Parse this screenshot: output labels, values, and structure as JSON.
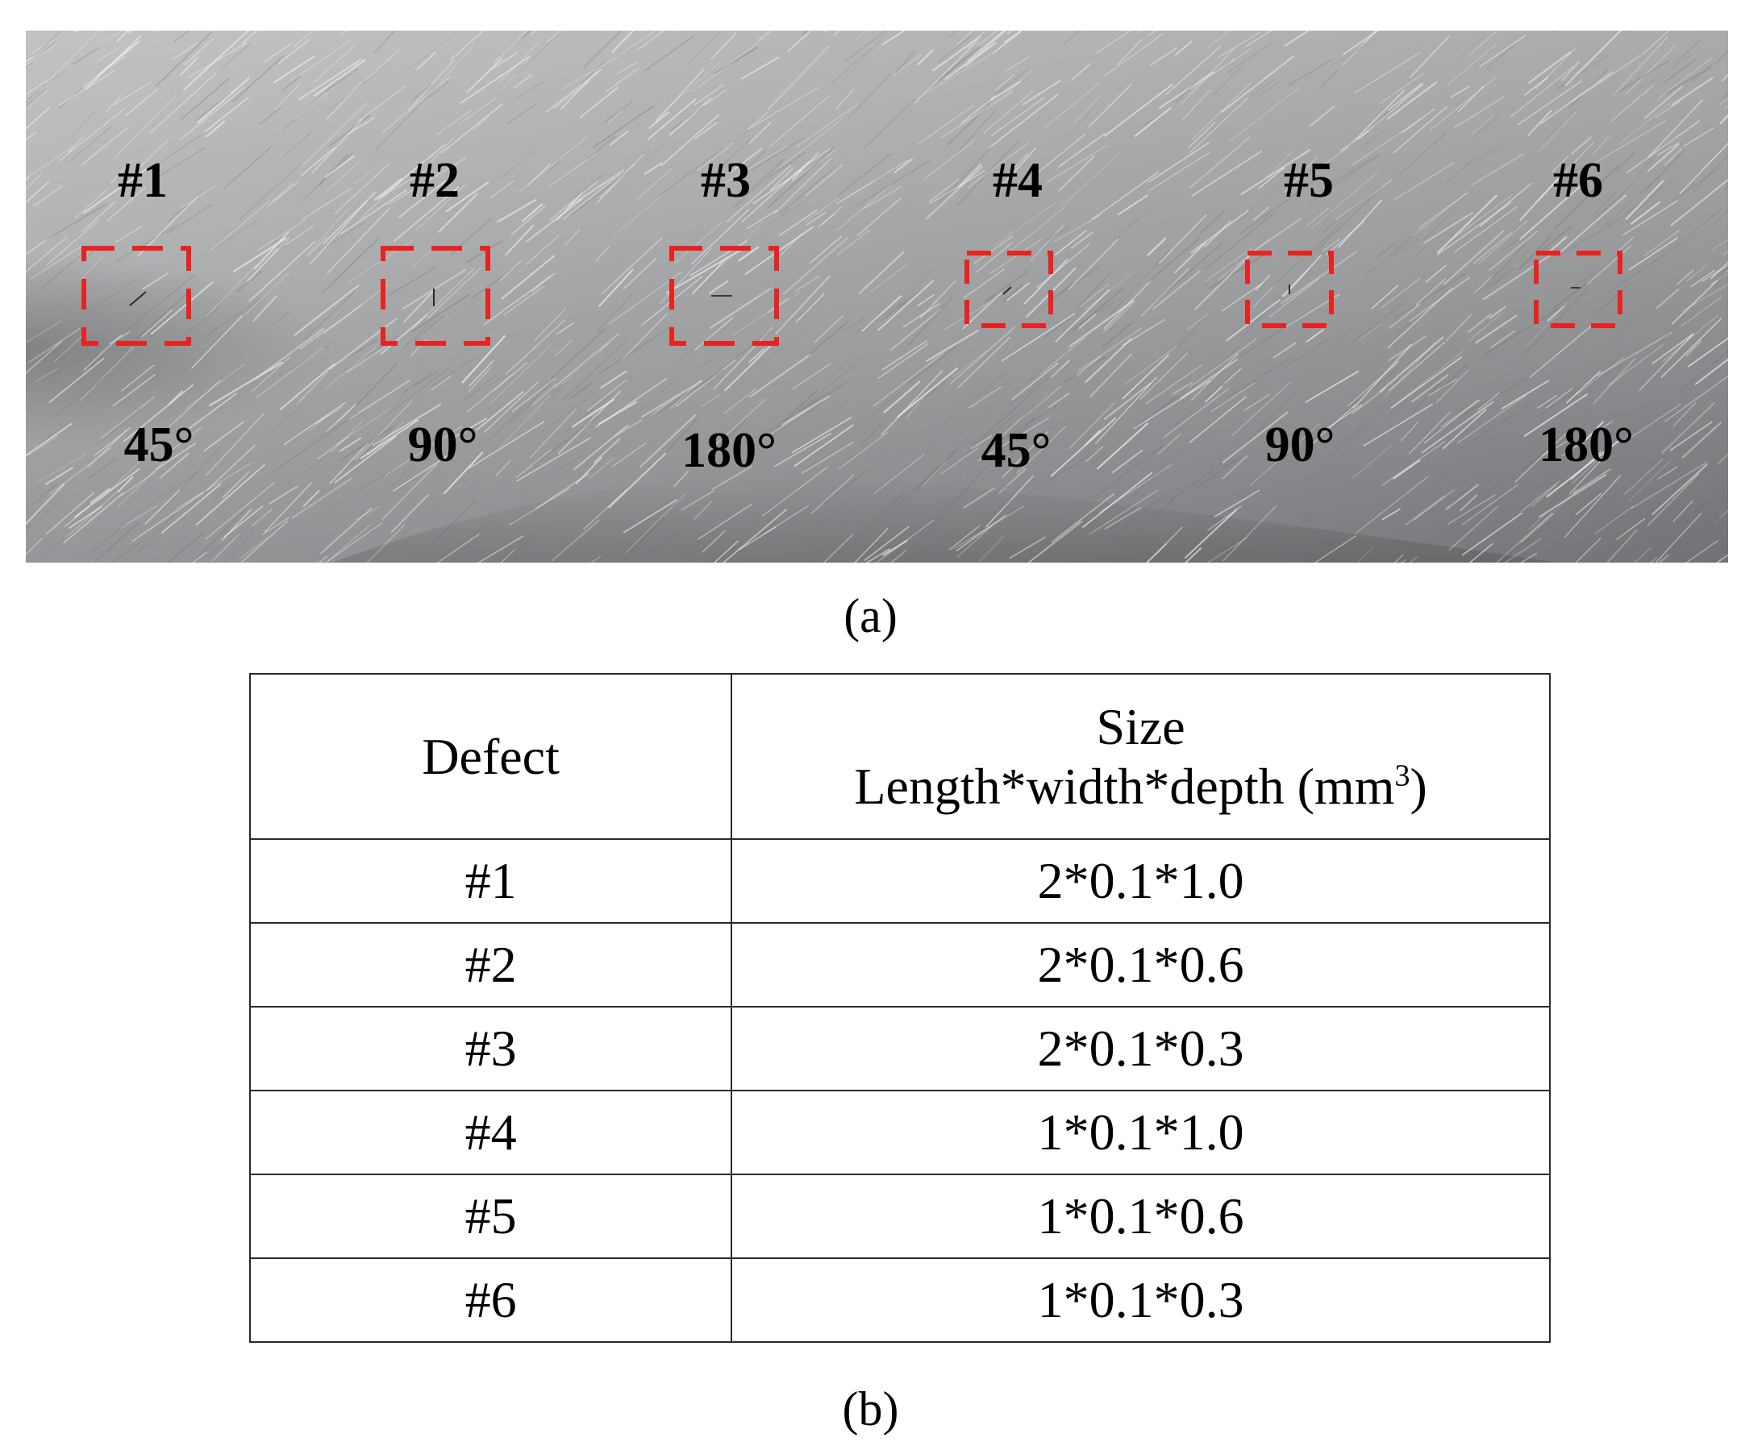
{
  "panel_a": {
    "caption": "(a)",
    "defects": [
      {
        "id": "#1",
        "angle": "45°"
      },
      {
        "id": "#2",
        "angle": "90°"
      },
      {
        "id": "#3",
        "angle": "180°"
      },
      {
        "id": "#4",
        "angle": "45°"
      },
      {
        "id": "#5",
        "angle": "90°"
      },
      {
        "id": "#6",
        "angle": "180°"
      }
    ],
    "box_color": "#e8231f"
  },
  "panel_b": {
    "caption": "(b)",
    "table": {
      "header_defect": "Defect",
      "header_size_line1": "Size",
      "header_size_line2": "Length*width*depth (mm",
      "header_size_unit_sup": "3",
      "header_size_close": ")",
      "rows": [
        {
          "defect": "#1",
          "size": "2*0.1*1.0"
        },
        {
          "defect": "#2",
          "size": "2*0.1*0.6"
        },
        {
          "defect": "#3",
          "size": "2*0.1*0.3"
        },
        {
          "defect": "#4",
          "size": "1*0.1*1.0"
        },
        {
          "defect": "#5",
          "size": "1*0.1*0.6"
        },
        {
          "defect": "#6",
          "size": "1*0.1*0.3"
        }
      ]
    }
  }
}
